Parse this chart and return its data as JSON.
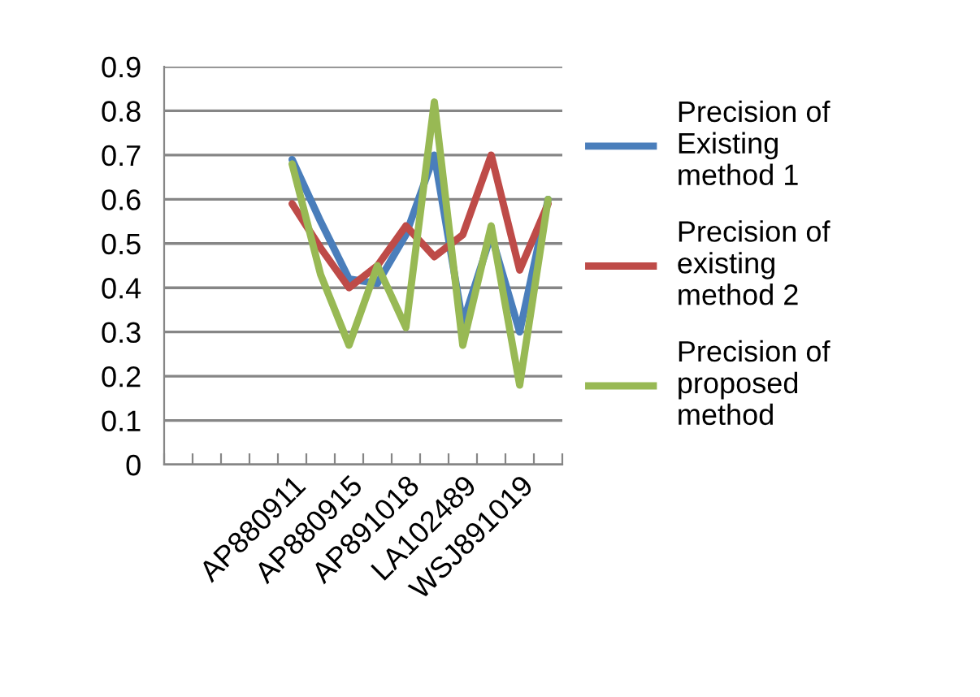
{
  "chart_data": {
    "type": "line",
    "categories": [
      null,
      null,
      null,
      null,
      "AP880911",
      null,
      "AP880915",
      null,
      "AP891018",
      null,
      "LA102489",
      null,
      "WSJ891019",
      null
    ],
    "series": [
      {
        "name": "Precision of  Existing method 1",
        "color": "#4a7ebb",
        "values": [
          null,
          null,
          null,
          null,
          0.69,
          0.55,
          0.42,
          0.41,
          0.52,
          0.7,
          0.32,
          0.52,
          0.3,
          0.6
        ]
      },
      {
        "name": "Precision of existing method 2",
        "color": "#be4b48",
        "values": [
          null,
          null,
          null,
          null,
          0.59,
          0.49,
          0.4,
          0.45,
          0.54,
          0.47,
          0.52,
          0.7,
          0.44,
          0.59
        ]
      },
      {
        "name": "Precision of proposed method",
        "color": "#98b954",
        "values": [
          null,
          null,
          null,
          null,
          0.68,
          0.43,
          0.27,
          0.45,
          0.31,
          0.82,
          0.27,
          0.54,
          0.18,
          0.6
        ]
      }
    ],
    "ylim": [
      0,
      0.9
    ],
    "yticks": [
      0,
      0.1,
      0.2,
      0.3,
      0.4,
      0.5,
      0.6,
      0.7,
      0.8,
      0.9
    ],
    "grid": "y",
    "legend": "right",
    "marker": "none",
    "line_style": "solid"
  }
}
